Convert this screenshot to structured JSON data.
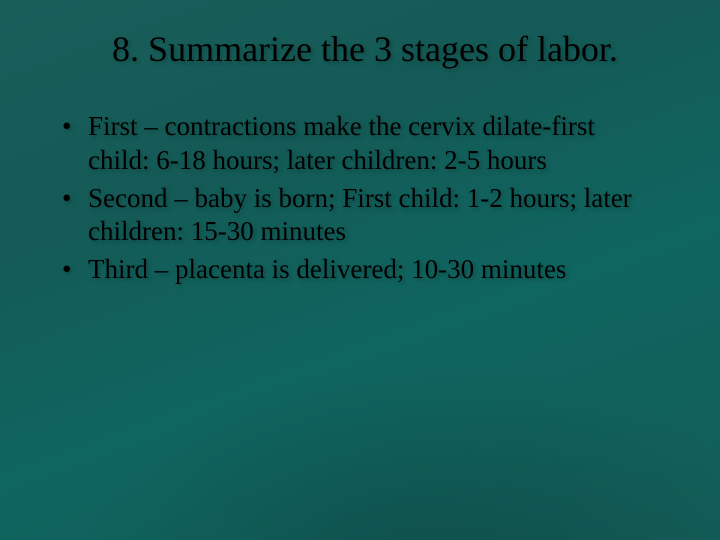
{
  "slide": {
    "title": "8.  Summarize the 3 stages of labor.",
    "bullets": [
      "First – contractions make the cervix dilate-first child: 6-18 hours; later children: 2-5 hours",
      "Second – baby is born; First child: 1-2 hours; later children: 15-30 minutes",
      "Third – placenta is delivered; 10-30 minutes"
    ]
  },
  "style": {
    "background_gradient": [
      "#1a5e5a",
      "#145a56",
      "#0f6560",
      "#135d58"
    ],
    "title_fontsize": 36,
    "bullet_fontsize": 27,
    "text_color": "#000000",
    "font_family": "Garamond, 'Times New Roman', serif",
    "shadow_color": "rgba(10,60,55,0.5)"
  }
}
